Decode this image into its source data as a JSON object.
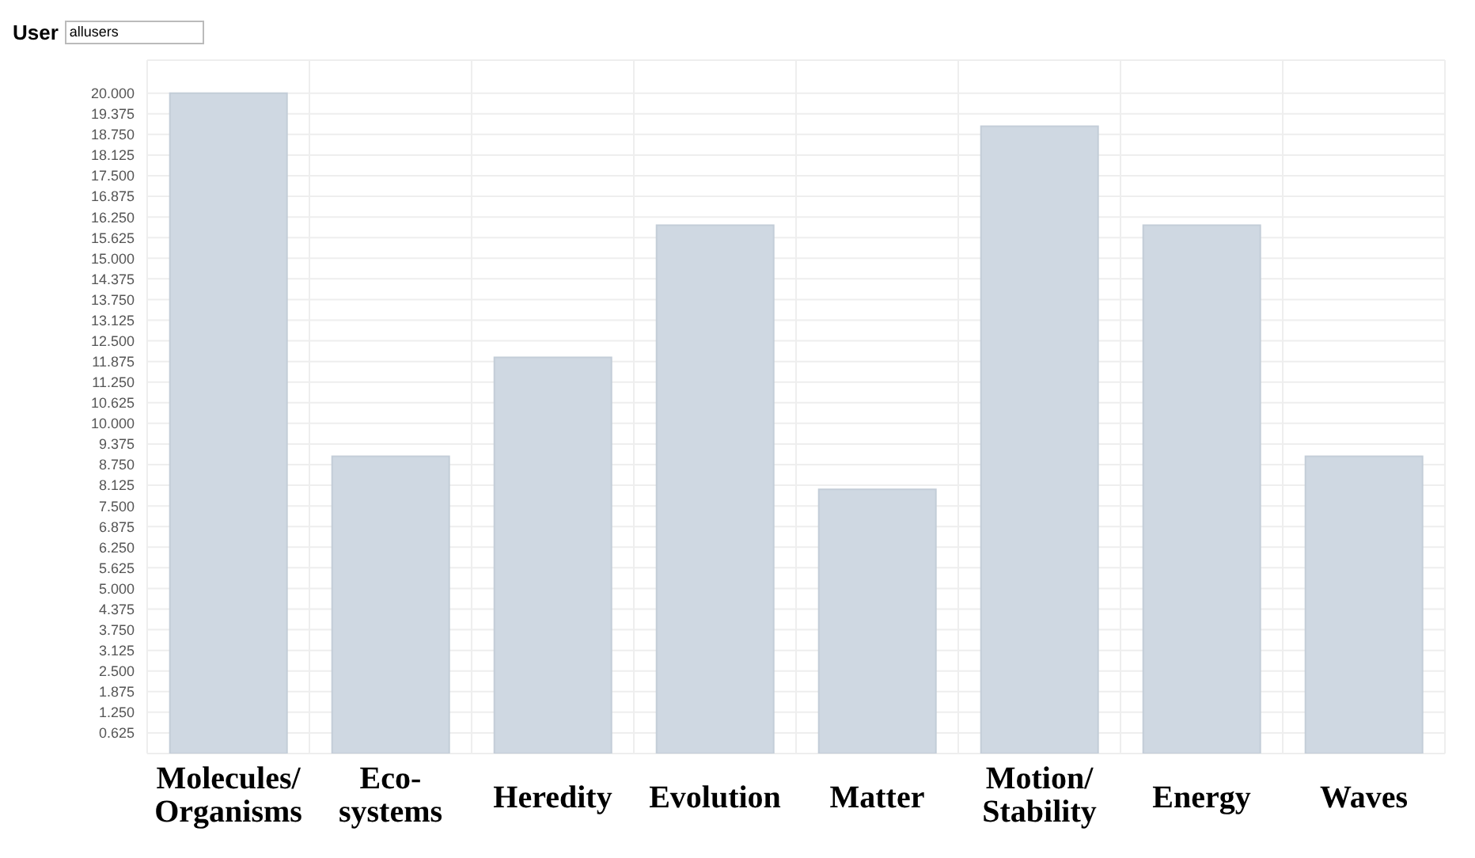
{
  "chart_data": {
    "type": "bar",
    "title": "User",
    "annotations": [
      "allusers"
    ],
    "categories": [
      "Molecules/Organisms",
      "Eco-systems",
      "Heredity",
      "Evolution",
      "Matter",
      "Motion/Stability",
      "Energy",
      "Waves"
    ],
    "values": [
      20,
      9,
      12,
      16,
      8,
      19,
      16,
      9
    ],
    "color": "#cfd8e2",
    "ylim": [
      0,
      21
    ],
    "yticks": [
      {
        "value": 0.625,
        "label": "0.625"
      },
      {
        "value": 1.25,
        "label": "1.250"
      },
      {
        "value": 1.875,
        "label": "1.875"
      },
      {
        "value": 2.5,
        "label": "2.500"
      },
      {
        "value": 3.125,
        "label": "3.125"
      },
      {
        "value": 3.75,
        "label": "3.750"
      },
      {
        "value": 4.375,
        "label": "4.375"
      },
      {
        "value": 5,
        "label": "5.000"
      },
      {
        "value": 5.625,
        "label": "5.625"
      },
      {
        "value": 6.25,
        "label": "6.250"
      },
      {
        "value": 6.875,
        "label": "6.875"
      },
      {
        "value": 7.5,
        "label": "7.500"
      },
      {
        "value": 8.125,
        "label": "8.125"
      },
      {
        "value": 8.75,
        "label": "8.750"
      },
      {
        "value": 9.375,
        "label": "9.375"
      },
      {
        "value": 10,
        "label": "10.000"
      },
      {
        "value": 10.625,
        "label": "10.625"
      },
      {
        "value": 11.25,
        "label": "11.250"
      },
      {
        "value": 11.875,
        "label": "11.875"
      },
      {
        "value": 12.5,
        "label": "12.500"
      },
      {
        "value": 13.125,
        "label": "13.125"
      },
      {
        "value": 13.75,
        "label": "13.750"
      },
      {
        "value": 14.375,
        "label": "14.375"
      },
      {
        "value": 15,
        "label": "15.000"
      },
      {
        "value": 15.625,
        "label": "15.625"
      },
      {
        "value": 16.25,
        "label": "16.250"
      },
      {
        "value": 16.875,
        "label": "16.875"
      },
      {
        "value": 17.5,
        "label": "17.500"
      },
      {
        "value": 18.125,
        "label": "18.125"
      },
      {
        "value": 18.75,
        "label": "18.750"
      },
      {
        "value": 19.375,
        "label": "19.375"
      },
      {
        "value": 20,
        "label": "20.000"
      }
    ],
    "grid": true
  }
}
